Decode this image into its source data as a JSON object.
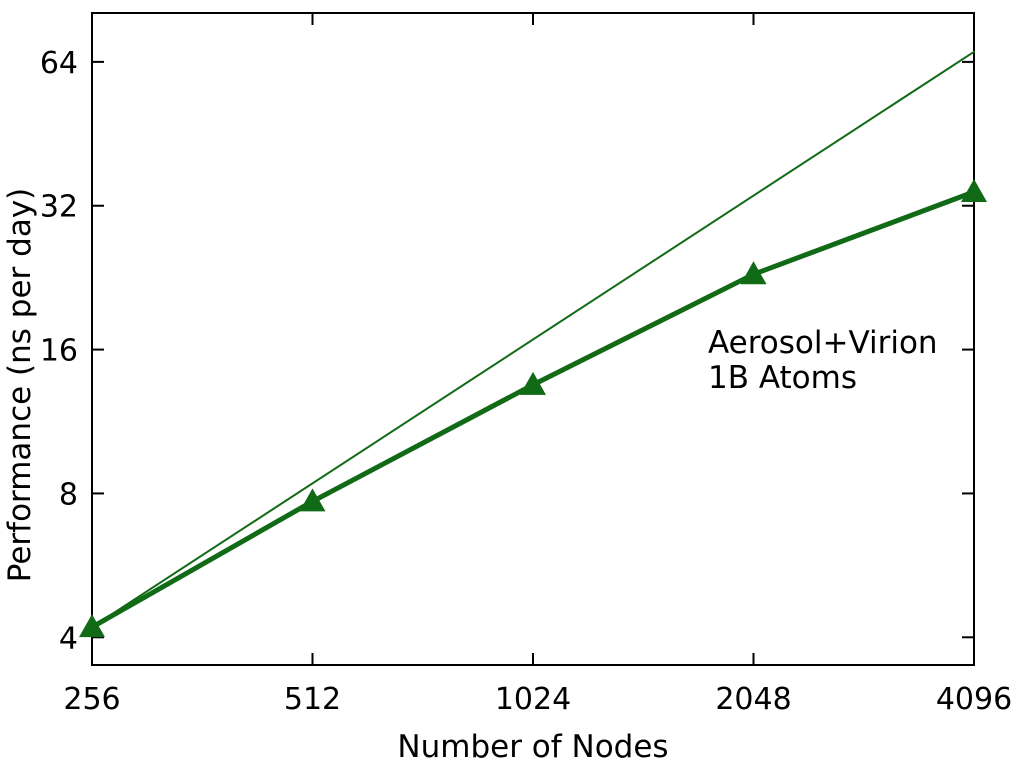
{
  "colors": {
    "series_green": "#116a16",
    "axis_black": "#000000",
    "background": "#ffffff"
  },
  "chart_data": {
    "type": "line",
    "title": "",
    "xlabel": "Number of Nodes",
    "ylabel": "Performance (ns per day)",
    "x_scale": "log2",
    "y_scale": "log2",
    "xlim": [
      256,
      4096
    ],
    "ylim": [
      3.5,
      81
    ],
    "x_ticks": [
      256,
      512,
      1024,
      2048,
      4096
    ],
    "y_ticks": [
      4,
      8,
      16,
      32,
      64
    ],
    "grid": false,
    "legend": "none",
    "annotation": {
      "lines": [
        "Aerosol+Virion",
        "1B Atoms"
      ]
    },
    "series": [
      {
        "name": "ideal-scaling-line",
        "x": [
          256,
          4096
        ],
        "y": [
          4.2,
          67.2
        ],
        "line_width": 2,
        "marker": "none"
      },
      {
        "name": "measured-performance",
        "x": [
          256,
          512,
          1024,
          2048,
          4096
        ],
        "y": [
          4.2,
          7.7,
          13.5,
          23.0,
          34.2
        ],
        "line_width": 5,
        "marker": "triangle"
      }
    ]
  }
}
